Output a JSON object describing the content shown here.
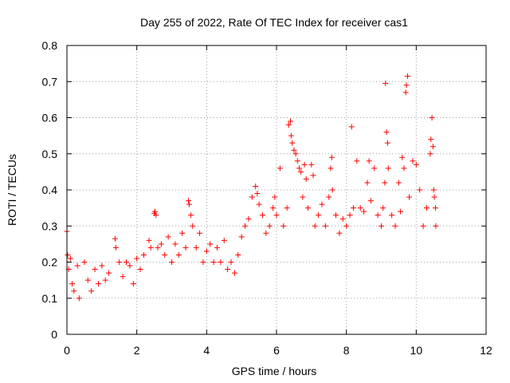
{
  "chart_data": {
    "type": "scatter",
    "title": "Day 255 of 2022, Rate Of TEC Index for receiver cas1",
    "xlabel": "GPS time / hours",
    "ylabel": "ROTI / TECUs",
    "xlim": [
      0,
      12
    ],
    "ylim": [
      0,
      0.8
    ],
    "x_ticks": [
      "0",
      "2",
      "4",
      "6",
      "8",
      "10",
      "12"
    ],
    "y_ticks": [
      "0",
      "0.1",
      "0.2",
      "0.3",
      "0.4",
      "0.5",
      "0.6",
      "0.7",
      "0.8"
    ],
    "grid": true,
    "legend": "none",
    "marker": "plus",
    "series": [
      {
        "color": "#ff0000",
        "points": [
          [
            0.0,
            0.285
          ],
          [
            0.02,
            0.22
          ],
          [
            0.05,
            0.18
          ],
          [
            0.1,
            0.21
          ],
          [
            0.15,
            0.14
          ],
          [
            0.2,
            0.12
          ],
          [
            0.3,
            0.19
          ],
          [
            0.35,
            0.1
          ],
          [
            0.5,
            0.2
          ],
          [
            0.6,
            0.15
          ],
          [
            0.7,
            0.12
          ],
          [
            0.8,
            0.18
          ],
          [
            0.9,
            0.14
          ],
          [
            1.0,
            0.19
          ],
          [
            1.1,
            0.15
          ],
          [
            1.2,
            0.17
          ],
          [
            1.38,
            0.265
          ],
          [
            1.4,
            0.24
          ],
          [
            1.5,
            0.2
          ],
          [
            1.6,
            0.16
          ],
          [
            1.7,
            0.2
          ],
          [
            1.8,
            0.19
          ],
          [
            1.9,
            0.14
          ],
          [
            2.0,
            0.21
          ],
          [
            2.1,
            0.18
          ],
          [
            2.2,
            0.22
          ],
          [
            2.35,
            0.26
          ],
          [
            2.4,
            0.24
          ],
          [
            2.5,
            0.335
          ],
          [
            2.52,
            0.34
          ],
          [
            2.55,
            0.33
          ],
          [
            2.6,
            0.24
          ],
          [
            2.7,
            0.25
          ],
          [
            2.8,
            0.22
          ],
          [
            2.9,
            0.27
          ],
          [
            3.0,
            0.2
          ],
          [
            3.1,
            0.25
          ],
          [
            3.2,
            0.22
          ],
          [
            3.3,
            0.28
          ],
          [
            3.4,
            0.24
          ],
          [
            3.48,
            0.37
          ],
          [
            3.5,
            0.36
          ],
          [
            3.55,
            0.33
          ],
          [
            3.6,
            0.3
          ],
          [
            3.7,
            0.24
          ],
          [
            3.8,
            0.28
          ],
          [
            3.9,
            0.2
          ],
          [
            4.0,
            0.23
          ],
          [
            4.1,
            0.25
          ],
          [
            4.2,
            0.2
          ],
          [
            4.3,
            0.24
          ],
          [
            4.4,
            0.2
          ],
          [
            4.5,
            0.26
          ],
          [
            4.6,
            0.18
          ],
          [
            4.7,
            0.2
          ],
          [
            4.8,
            0.17
          ],
          [
            4.9,
            0.22
          ],
          [
            5.0,
            0.27
          ],
          [
            5.1,
            0.3
          ],
          [
            5.2,
            0.32
          ],
          [
            5.3,
            0.38
          ],
          [
            5.4,
            0.41
          ],
          [
            5.45,
            0.39
          ],
          [
            5.5,
            0.36
          ],
          [
            5.6,
            0.33
          ],
          [
            5.7,
            0.28
          ],
          [
            5.8,
            0.3
          ],
          [
            5.9,
            0.35
          ],
          [
            5.95,
            0.38
          ],
          [
            6.0,
            0.33
          ],
          [
            6.1,
            0.46
          ],
          [
            6.2,
            0.3
          ],
          [
            6.3,
            0.35
          ],
          [
            6.35,
            0.58
          ],
          [
            6.4,
            0.59
          ],
          [
            6.42,
            0.55
          ],
          [
            6.45,
            0.53
          ],
          [
            6.5,
            0.51
          ],
          [
            6.55,
            0.5
          ],
          [
            6.6,
            0.48
          ],
          [
            6.65,
            0.46
          ],
          [
            6.7,
            0.45
          ],
          [
            6.75,
            0.38
          ],
          [
            6.8,
            0.47
          ],
          [
            6.85,
            0.43
          ],
          [
            6.9,
            0.35
          ],
          [
            7.0,
            0.47
          ],
          [
            7.05,
            0.44
          ],
          [
            7.1,
            0.3
          ],
          [
            7.2,
            0.33
          ],
          [
            7.3,
            0.36
          ],
          [
            7.4,
            0.3
          ],
          [
            7.5,
            0.38
          ],
          [
            7.55,
            0.46
          ],
          [
            7.58,
            0.49
          ],
          [
            7.6,
            0.4
          ],
          [
            7.7,
            0.33
          ],
          [
            7.8,
            0.28
          ],
          [
            7.9,
            0.32
          ],
          [
            8.0,
            0.3
          ],
          [
            8.1,
            0.33
          ],
          [
            8.15,
            0.575
          ],
          [
            8.2,
            0.35
          ],
          [
            8.3,
            0.48
          ],
          [
            8.4,
            0.35
          ],
          [
            8.5,
            0.34
          ],
          [
            8.6,
            0.42
          ],
          [
            8.65,
            0.48
          ],
          [
            8.7,
            0.37
          ],
          [
            8.8,
            0.46
          ],
          [
            8.9,
            0.33
          ],
          [
            9.0,
            0.3
          ],
          [
            9.05,
            0.35
          ],
          [
            9.1,
            0.42
          ],
          [
            9.12,
            0.695
          ],
          [
            9.15,
            0.56
          ],
          [
            9.18,
            0.53
          ],
          [
            9.2,
            0.46
          ],
          [
            9.3,
            0.33
          ],
          [
            9.4,
            0.3
          ],
          [
            9.5,
            0.42
          ],
          [
            9.55,
            0.34
          ],
          [
            9.6,
            0.49
          ],
          [
            9.65,
            0.46
          ],
          [
            9.7,
            0.67
          ],
          [
            9.72,
            0.69
          ],
          [
            9.75,
            0.715
          ],
          [
            9.8,
            0.38
          ],
          [
            9.9,
            0.48
          ],
          [
            10.0,
            0.47
          ],
          [
            10.1,
            0.4
          ],
          [
            10.2,
            0.3
          ],
          [
            10.3,
            0.35
          ],
          [
            10.4,
            0.5
          ],
          [
            10.42,
            0.54
          ],
          [
            10.45,
            0.6
          ],
          [
            10.48,
            0.52
          ],
          [
            10.5,
            0.4
          ],
          [
            10.52,
            0.38
          ],
          [
            10.55,
            0.35
          ],
          [
            10.56,
            0.3
          ]
        ]
      }
    ]
  }
}
